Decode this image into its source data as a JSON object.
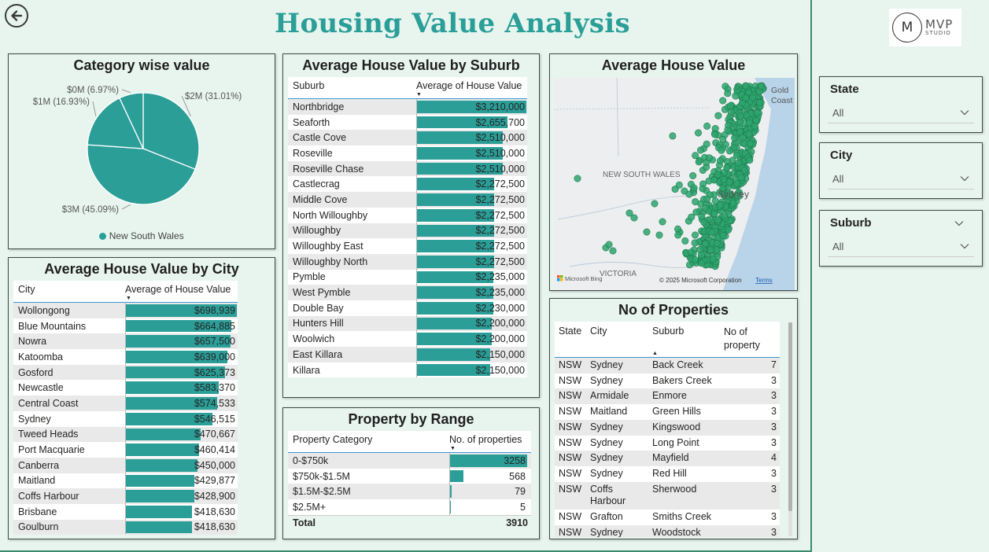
{
  "header": {
    "title": "Housing Value Analysis",
    "back_icon": "back-arrow-icon"
  },
  "logo": {
    "mark": "M",
    "line1": "MVP",
    "line2": "STUDIO"
  },
  "category_chart": {
    "title": "Category wise value",
    "legend": "New South Wales",
    "labels": [
      "$2M (31.01%)",
      "$3M (45.09%)",
      "$1M (16.93%)",
      "$0M (6.97%)"
    ],
    "chart_data": {
      "type": "pie",
      "title": "Category wise value",
      "categories": [
        "$2M",
        "$3M",
        "$1M",
        "$0M"
      ],
      "values": [
        31.01,
        45.09,
        16.93,
        6.97
      ],
      "series_name": "New South Wales",
      "legend_position": "bottom"
    }
  },
  "suburb_table": {
    "title": "Average House Value by Suburb",
    "col1": "Suburb",
    "col2": "Average of House Value",
    "max": 3210000,
    "rows": [
      {
        "name": "Northbridge",
        "value": 3210000,
        "label": "$3,210,000"
      },
      {
        "name": "Seaforth",
        "value": 2655700,
        "label": "$2,655,700"
      },
      {
        "name": "Castle Cove",
        "value": 2510000,
        "label": "$2,510,000"
      },
      {
        "name": "Roseville",
        "value": 2510000,
        "label": "$2,510,000"
      },
      {
        "name": "Roseville Chase",
        "value": 2510000,
        "label": "$2,510,000"
      },
      {
        "name": "Castlecrag",
        "value": 2272500,
        "label": "$2,272,500"
      },
      {
        "name": "Middle Cove",
        "value": 2272500,
        "label": "$2,272,500"
      },
      {
        "name": "North Willoughby",
        "value": 2272500,
        "label": "$2,272,500"
      },
      {
        "name": "Willoughby",
        "value": 2272500,
        "label": "$2,272,500"
      },
      {
        "name": "Willoughby East",
        "value": 2272500,
        "label": "$2,272,500"
      },
      {
        "name": "Willoughby North",
        "value": 2272500,
        "label": "$2,272,500"
      },
      {
        "name": "Pymble",
        "value": 2235000,
        "label": "$2,235,000"
      },
      {
        "name": "West Pymble",
        "value": 2235000,
        "label": "$2,235,000"
      },
      {
        "name": "Double Bay",
        "value": 2230000,
        "label": "$2,230,000"
      },
      {
        "name": "Hunters Hill",
        "value": 2200000,
        "label": "$2,200,000"
      },
      {
        "name": "Woolwich",
        "value": 2200000,
        "label": "$2,200,000"
      },
      {
        "name": "East Killara",
        "value": 2150000,
        "label": "$2,150,000"
      },
      {
        "name": "Killara",
        "value": 2150000,
        "label": "$2,150,000"
      }
    ]
  },
  "map": {
    "title": "Average House Value",
    "labels": {
      "nsw": "NEW SOUTH WALES",
      "vic": "VICTORIA",
      "sydney": "Sydney",
      "gold": "Gold",
      "coast": "Coast"
    },
    "copyright": "© 2025 Microsoft Corporation",
    "terms": "Terms",
    "bing": "Microsoft Bing"
  },
  "city_table": {
    "title": "Average House Value by City",
    "col1": "City",
    "col2": "Average of House Value",
    "max": 698939,
    "rows": [
      {
        "name": "Wollongong",
        "value": 698939,
        "label": "$698,939"
      },
      {
        "name": "Blue Mountains",
        "value": 664885,
        "label": "$664,885"
      },
      {
        "name": "Nowra",
        "value": 657500,
        "label": "$657,500"
      },
      {
        "name": "Katoomba",
        "value": 639000,
        "label": "$639,000"
      },
      {
        "name": "Gosford",
        "value": 625373,
        "label": "$625,373"
      },
      {
        "name": "Newcastle",
        "value": 583370,
        "label": "$583,370"
      },
      {
        "name": "Central Coast",
        "value": 574533,
        "label": "$574,533"
      },
      {
        "name": "Sydney",
        "value": 546515,
        "label": "$546,515"
      },
      {
        "name": "Tweed Heads",
        "value": 470667,
        "label": "$470,667"
      },
      {
        "name": "Port Macquarie",
        "value": 460414,
        "label": "$460,414"
      },
      {
        "name": "Canberra",
        "value": 450000,
        "label": "$450,000"
      },
      {
        "name": "Maitland",
        "value": 429877,
        "label": "$429,877"
      },
      {
        "name": "Coffs Harbour",
        "value": 428900,
        "label": "$428,900"
      },
      {
        "name": "Brisbane",
        "value": 418630,
        "label": "$418,630"
      },
      {
        "name": "Goulburn",
        "value": 418630,
        "label": "$418,630"
      }
    ]
  },
  "range_table": {
    "title": "Property by Range",
    "col1": "Property Category",
    "col2": "No. of properties",
    "max": 3258,
    "rows": [
      {
        "name": "0-$750k",
        "value": 3258,
        "label": "3258"
      },
      {
        "name": "$750k-$1.5M",
        "value": 568,
        "label": "568"
      },
      {
        "name": "$1.5M-$2.5M",
        "value": 79,
        "label": "79"
      },
      {
        "name": "$2.5M+",
        "value": 5,
        "label": "5"
      }
    ],
    "total_label": "Total",
    "total_value": "3910"
  },
  "props_table": {
    "title": "No of Properties",
    "cols": [
      "State",
      "City",
      "Suburb",
      "No of property"
    ],
    "rows": [
      [
        "NSW",
        "Sydney",
        "Back Creek",
        "7"
      ],
      [
        "NSW",
        "Sydney",
        "Bakers Creek",
        "3"
      ],
      [
        "NSW",
        "Armidale",
        "Enmore",
        "3"
      ],
      [
        "NSW",
        "Maitland",
        "Green Hills",
        "3"
      ],
      [
        "NSW",
        "Sydney",
        "Kingswood",
        "3"
      ],
      [
        "NSW",
        "Sydney",
        "Long Point",
        "3"
      ],
      [
        "NSW",
        "Sydney",
        "Mayfield",
        "4"
      ],
      [
        "NSW",
        "Sydney",
        "Red Hill",
        "3"
      ],
      [
        "NSW",
        "Coffs Harbour",
        "Sherwood",
        "3"
      ],
      [
        "NSW",
        "Grafton",
        "Smiths Creek",
        "3"
      ],
      [
        "NSW",
        "Sydney",
        "Woodstock",
        "3"
      ]
    ]
  },
  "slicers": [
    {
      "title": "State",
      "value": "All"
    },
    {
      "title": "City",
      "value": "All"
    },
    {
      "title": "Suburb",
      "value": "All"
    }
  ],
  "colors": {
    "accent": "#2b9e98",
    "background": "#e8f5ef",
    "map_dot": "#2ea56d"
  }
}
